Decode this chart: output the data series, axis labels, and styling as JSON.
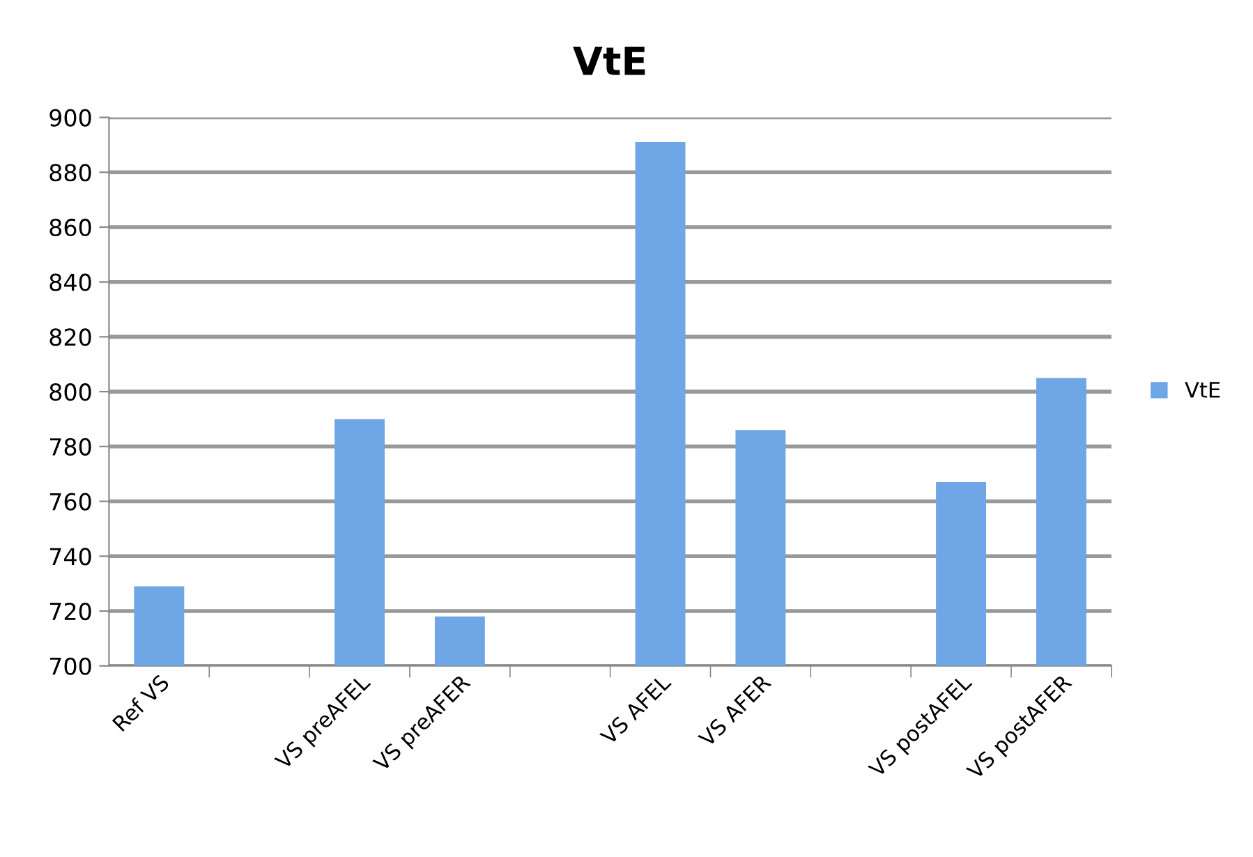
{
  "chart_data": {
    "type": "bar",
    "title": "VtE",
    "categories": [
      "Ref VS",
      null,
      "VS preAFEL",
      "VS preAFER",
      null,
      "VS AFEL",
      "VS AFER",
      null,
      "VS postAFEL",
      "VS postAFER"
    ],
    "series": [
      {
        "name": "VtE",
        "color": "#6fa6e6",
        "values": [
          729,
          null,
          790,
          718,
          null,
          891,
          786,
          null,
          767,
          805
        ]
      }
    ],
    "ylim": [
      700,
      900
    ],
    "yticks": [
      700,
      720,
      740,
      760,
      780,
      800,
      820,
      840,
      860,
      880,
      900
    ],
    "grid": "y",
    "legend": "right"
  }
}
